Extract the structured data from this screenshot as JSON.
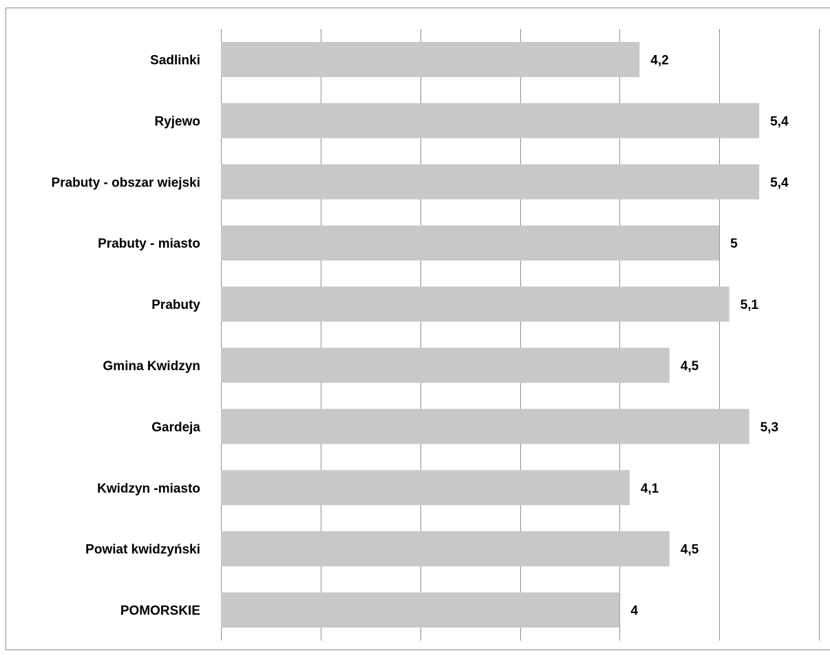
{
  "chart_data": {
    "type": "bar",
    "orientation": "horizontal",
    "categories": [
      "Sadlinki",
      "Ryjewo",
      "Prabuty - obszar wiejski",
      "Prabuty - miasto",
      "Prabuty",
      "Gmina Kwidzyn",
      "Gardeja",
      "Kwidzyn -miasto",
      "Powiat kwidzyński",
      "POMORSKIE"
    ],
    "values": [
      4.2,
      5.4,
      5.4,
      5,
      5.1,
      4.5,
      5.3,
      4.1,
      4.5,
      4
    ],
    "value_labels": [
      "4,2",
      "5,4",
      "5,4",
      "5",
      "5,1",
      "4,5",
      "5,3",
      "4,1",
      "4,5",
      "4"
    ],
    "xlim": [
      0,
      6
    ],
    "gridlines": true,
    "bar_color": "#c8c8c8",
    "grid_color": "#8c8c8c"
  }
}
